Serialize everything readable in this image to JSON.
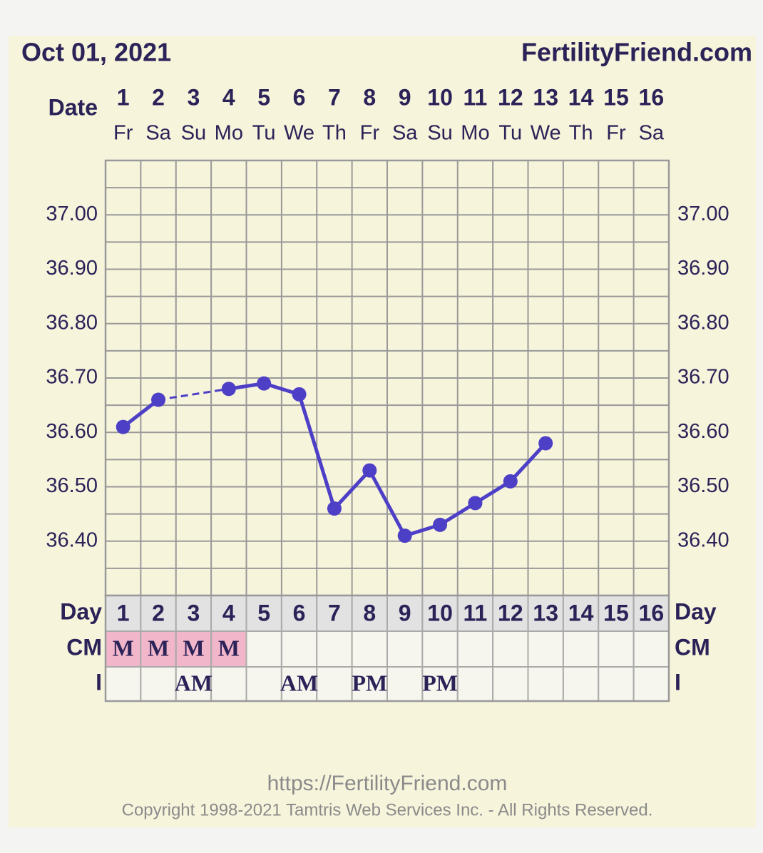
{
  "header": {
    "date": "Oct 01, 2021",
    "site": "FertilityFriend.com"
  },
  "chart_data": {
    "type": "line",
    "x_label": "Date",
    "categories": [
      1,
      2,
      3,
      4,
      5,
      6,
      7,
      8,
      9,
      10,
      11,
      12,
      13,
      14,
      15,
      16
    ],
    "weekdays": [
      "Fr",
      "Sa",
      "Su",
      "Mo",
      "Tu",
      "We",
      "Th",
      "Fr",
      "Sa",
      "Su",
      "Mo",
      "Tu",
      "We",
      "Th",
      "Fr",
      "Sa"
    ],
    "series": [
      {
        "color": "#4d3fc6",
        "values": [
          36.61,
          36.66,
          null,
          36.68,
          36.69,
          36.67,
          36.46,
          36.53,
          36.41,
          36.43,
          36.47,
          36.51,
          36.58,
          null,
          null,
          null
        ]
      }
    ],
    "ylim": [
      36.3,
      37.1
    ],
    "yticks": [
      {
        "value": 37.0,
        "label": "37.00"
      },
      {
        "value": 36.9,
        "label": "36.90"
      },
      {
        "value": 36.8,
        "label": "36.80"
      },
      {
        "value": 36.7,
        "label": "36.70"
      },
      {
        "value": 36.6,
        "label": "36.60"
      },
      {
        "value": 36.5,
        "label": "36.50"
      },
      {
        "value": 36.4,
        "label": "36.40"
      }
    ],
    "grid": true
  },
  "table": {
    "rows": [
      {
        "label": "Day",
        "values": [
          1,
          2,
          3,
          4,
          5,
          6,
          7,
          8,
          9,
          10,
          11,
          12,
          13,
          14,
          15,
          16
        ]
      },
      {
        "label": "CM",
        "values": [
          "M",
          "M",
          "M",
          "M",
          null,
          null,
          null,
          null,
          null,
          null,
          null,
          null,
          null,
          null,
          null,
          null
        ]
      },
      {
        "label": "I",
        "values": [
          null,
          null,
          "AM",
          null,
          null,
          "AM",
          null,
          "PM",
          null,
          "PM",
          null,
          null,
          null,
          null,
          null,
          null
        ]
      }
    ]
  },
  "footer": {
    "url": "https://FertilityFriend.com",
    "copyright": "Copyright 1998-2021 Tamtris Web Services Inc. - All Rights Reserved."
  }
}
